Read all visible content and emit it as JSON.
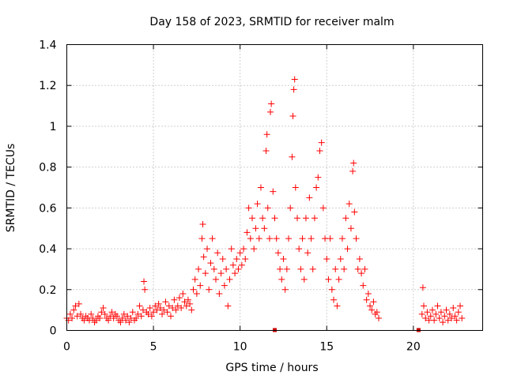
{
  "chart_data": {
    "type": "scatter",
    "title": "Day 158 of 2023, SRMTID for receiver malm",
    "xlabel": "GPS time / hours",
    "ylabel": "SRMTID / TECUs",
    "xlim": [
      0,
      24
    ],
    "ylim": [
      0,
      1.4
    ],
    "xticks": [
      0,
      5,
      10,
      15,
      20
    ],
    "xtick_labels": [
      "0",
      "5",
      "10",
      "15",
      "20"
    ],
    "yticks": [
      0,
      0.2,
      0.4,
      0.6,
      0.8,
      1,
      1.2,
      1.4
    ],
    "ytick_labels": [
      "0",
      "0.2",
      "0.4",
      "0.6",
      "0.8",
      "1",
      "1.2",
      "1.4"
    ],
    "grid": true,
    "marker": "+",
    "color": "#ff0000",
    "x_markers": [
      12.0,
      20.3
    ],
    "series": [
      {
        "name": "SRMTID",
        "points": [
          [
            0.0,
            0.06
          ],
          [
            0.1,
            0.05
          ],
          [
            0.2,
            0.08
          ],
          [
            0.3,
            0.06
          ],
          [
            0.4,
            0.1
          ],
          [
            0.5,
            0.12
          ],
          [
            0.6,
            0.07
          ],
          [
            0.7,
            0.13
          ],
          [
            0.8,
            0.08
          ],
          [
            0.9,
            0.06
          ],
          [
            1.0,
            0.05
          ],
          [
            1.1,
            0.07
          ],
          [
            1.2,
            0.06
          ],
          [
            1.3,
            0.05
          ],
          [
            1.4,
            0.08
          ],
          [
            1.5,
            0.06
          ],
          [
            1.6,
            0.04
          ],
          [
            1.7,
            0.05
          ],
          [
            1.8,
            0.07
          ],
          [
            1.9,
            0.06
          ],
          [
            2.0,
            0.09
          ],
          [
            2.1,
            0.11
          ],
          [
            2.2,
            0.08
          ],
          [
            2.3,
            0.06
          ],
          [
            2.4,
            0.05
          ],
          [
            2.5,
            0.07
          ],
          [
            2.6,
            0.09
          ],
          [
            2.7,
            0.06
          ],
          [
            2.8,
            0.08
          ],
          [
            2.9,
            0.07
          ],
          [
            3.0,
            0.05
          ],
          [
            3.1,
            0.04
          ],
          [
            3.2,
            0.06
          ],
          [
            3.3,
            0.08
          ],
          [
            3.4,
            0.05
          ],
          [
            3.5,
            0.07
          ],
          [
            3.6,
            0.04
          ],
          [
            3.7,
            0.06
          ],
          [
            3.8,
            0.09
          ],
          [
            3.9,
            0.05
          ],
          [
            4.0,
            0.06
          ],
          [
            4.1,
            0.08
          ],
          [
            4.2,
            0.12
          ],
          [
            4.3,
            0.07
          ],
          [
            4.4,
            0.1
          ],
          [
            4.45,
            0.24
          ],
          [
            4.5,
            0.2
          ],
          [
            4.6,
            0.09
          ],
          [
            4.7,
            0.08
          ],
          [
            4.8,
            0.11
          ],
          [
            4.9,
            0.07
          ],
          [
            5.0,
            0.09
          ],
          [
            5.1,
            0.12
          ],
          [
            5.2,
            0.1
          ],
          [
            5.3,
            0.13
          ],
          [
            5.4,
            0.11
          ],
          [
            5.5,
            0.08
          ],
          [
            5.6,
            0.1
          ],
          [
            5.7,
            0.14
          ],
          [
            5.8,
            0.09
          ],
          [
            5.9,
            0.12
          ],
          [
            6.0,
            0.07
          ],
          [
            6.1,
            0.11
          ],
          [
            6.2,
            0.15
          ],
          [
            6.3,
            0.1
          ],
          [
            6.4,
            0.12
          ],
          [
            6.5,
            0.16
          ],
          [
            6.6,
            0.11
          ],
          [
            6.7,
            0.18
          ],
          [
            6.8,
            0.14
          ],
          [
            6.9,
            0.12
          ],
          [
            7.0,
            0.15
          ],
          [
            7.1,
            0.13
          ],
          [
            7.2,
            0.1
          ],
          [
            7.3,
            0.2
          ],
          [
            7.4,
            0.25
          ],
          [
            7.5,
            0.18
          ],
          [
            7.6,
            0.3
          ],
          [
            7.7,
            0.22
          ],
          [
            7.8,
            0.45
          ],
          [
            7.85,
            0.52
          ],
          [
            7.9,
            0.36
          ],
          [
            8.0,
            0.28
          ],
          [
            8.1,
            0.4
          ],
          [
            8.2,
            0.2
          ],
          [
            8.3,
            0.33
          ],
          [
            8.4,
            0.45
          ],
          [
            8.5,
            0.3
          ],
          [
            8.6,
            0.25
          ],
          [
            8.7,
            0.38
          ],
          [
            8.8,
            0.18
          ],
          [
            8.9,
            0.28
          ],
          [
            9.0,
            0.35
          ],
          [
            9.1,
            0.22
          ],
          [
            9.2,
            0.3
          ],
          [
            9.3,
            0.12
          ],
          [
            9.4,
            0.25
          ],
          [
            9.5,
            0.4
          ],
          [
            9.6,
            0.32
          ],
          [
            9.7,
            0.28
          ],
          [
            9.8,
            0.35
          ],
          [
            9.9,
            0.3
          ],
          [
            10.0,
            0.38
          ],
          [
            10.1,
            0.32
          ],
          [
            10.2,
            0.4
          ],
          [
            10.3,
            0.35
          ],
          [
            10.4,
            0.48
          ],
          [
            10.5,
            0.6
          ],
          [
            10.6,
            0.45
          ],
          [
            10.7,
            0.55
          ],
          [
            10.8,
            0.4
          ],
          [
            10.9,
            0.5
          ],
          [
            11.0,
            0.62
          ],
          [
            11.1,
            0.45
          ],
          [
            11.2,
            0.7
          ],
          [
            11.3,
            0.55
          ],
          [
            11.4,
            0.5
          ],
          [
            11.5,
            0.88
          ],
          [
            11.55,
            0.96
          ],
          [
            11.6,
            0.6
          ],
          [
            11.7,
            0.45
          ],
          [
            11.75,
            1.07
          ],
          [
            11.8,
            1.11
          ],
          [
            11.9,
            0.68
          ],
          [
            12.0,
            0.55
          ],
          [
            12.1,
            0.45
          ],
          [
            12.2,
            0.38
          ],
          [
            12.3,
            0.3
          ],
          [
            12.4,
            0.25
          ],
          [
            12.5,
            0.35
          ],
          [
            12.6,
            0.2
          ],
          [
            12.7,
            0.3
          ],
          [
            12.8,
            0.45
          ],
          [
            12.9,
            0.6
          ],
          [
            13.0,
            0.85
          ],
          [
            13.05,
            1.05
          ],
          [
            13.1,
            1.18
          ],
          [
            13.15,
            1.23
          ],
          [
            13.2,
            0.7
          ],
          [
            13.3,
            0.55
          ],
          [
            13.4,
            0.4
          ],
          [
            13.5,
            0.3
          ],
          [
            13.6,
            0.45
          ],
          [
            13.7,
            0.25
          ],
          [
            13.8,
            0.55
          ],
          [
            13.9,
            0.38
          ],
          [
            14.0,
            0.65
          ],
          [
            14.1,
            0.45
          ],
          [
            14.2,
            0.3
          ],
          [
            14.3,
            0.55
          ],
          [
            14.4,
            0.7
          ],
          [
            14.5,
            0.75
          ],
          [
            14.6,
            0.88
          ],
          [
            14.7,
            0.92
          ],
          [
            14.8,
            0.6
          ],
          [
            14.9,
            0.45
          ],
          [
            15.0,
            0.35
          ],
          [
            15.1,
            0.25
          ],
          [
            15.2,
            0.45
          ],
          [
            15.3,
            0.2
          ],
          [
            15.4,
            0.15
          ],
          [
            15.5,
            0.3
          ],
          [
            15.6,
            0.12
          ],
          [
            15.7,
            0.25
          ],
          [
            15.8,
            0.35
          ],
          [
            15.9,
            0.45
          ],
          [
            16.0,
            0.3
          ],
          [
            16.1,
            0.55
          ],
          [
            16.2,
            0.4
          ],
          [
            16.3,
            0.62
          ],
          [
            16.4,
            0.5
          ],
          [
            16.5,
            0.78
          ],
          [
            16.55,
            0.82
          ],
          [
            16.6,
            0.58
          ],
          [
            16.7,
            0.45
          ],
          [
            16.8,
            0.3
          ],
          [
            16.9,
            0.35
          ],
          [
            17.0,
            0.28
          ],
          [
            17.1,
            0.22
          ],
          [
            17.2,
            0.3
          ],
          [
            17.3,
            0.15
          ],
          [
            17.4,
            0.18
          ],
          [
            17.5,
            0.12
          ],
          [
            17.6,
            0.1
          ],
          [
            17.7,
            0.14
          ],
          [
            17.8,
            0.08
          ],
          [
            17.9,
            0.09
          ],
          [
            18.0,
            0.06
          ],
          [
            20.5,
            0.08
          ],
          [
            20.55,
            0.21
          ],
          [
            20.6,
            0.12
          ],
          [
            20.7,
            0.06
          ],
          [
            20.8,
            0.09
          ],
          [
            20.9,
            0.05
          ],
          [
            21.0,
            0.07
          ],
          [
            21.1,
            0.1
          ],
          [
            21.2,
            0.05
          ],
          [
            21.3,
            0.08
          ],
          [
            21.4,
            0.12
          ],
          [
            21.5,
            0.06
          ],
          [
            21.6,
            0.09
          ],
          [
            21.7,
            0.04
          ],
          [
            21.8,
            0.07
          ],
          [
            21.9,
            0.1
          ],
          [
            22.0,
            0.05
          ],
          [
            22.1,
            0.08
          ],
          [
            22.2,
            0.06
          ],
          [
            22.3,
            0.11
          ],
          [
            22.4,
            0.07
          ],
          [
            22.5,
            0.05
          ],
          [
            22.6,
            0.09
          ],
          [
            22.7,
            0.12
          ],
          [
            22.8,
            0.06
          ]
        ]
      }
    ]
  }
}
